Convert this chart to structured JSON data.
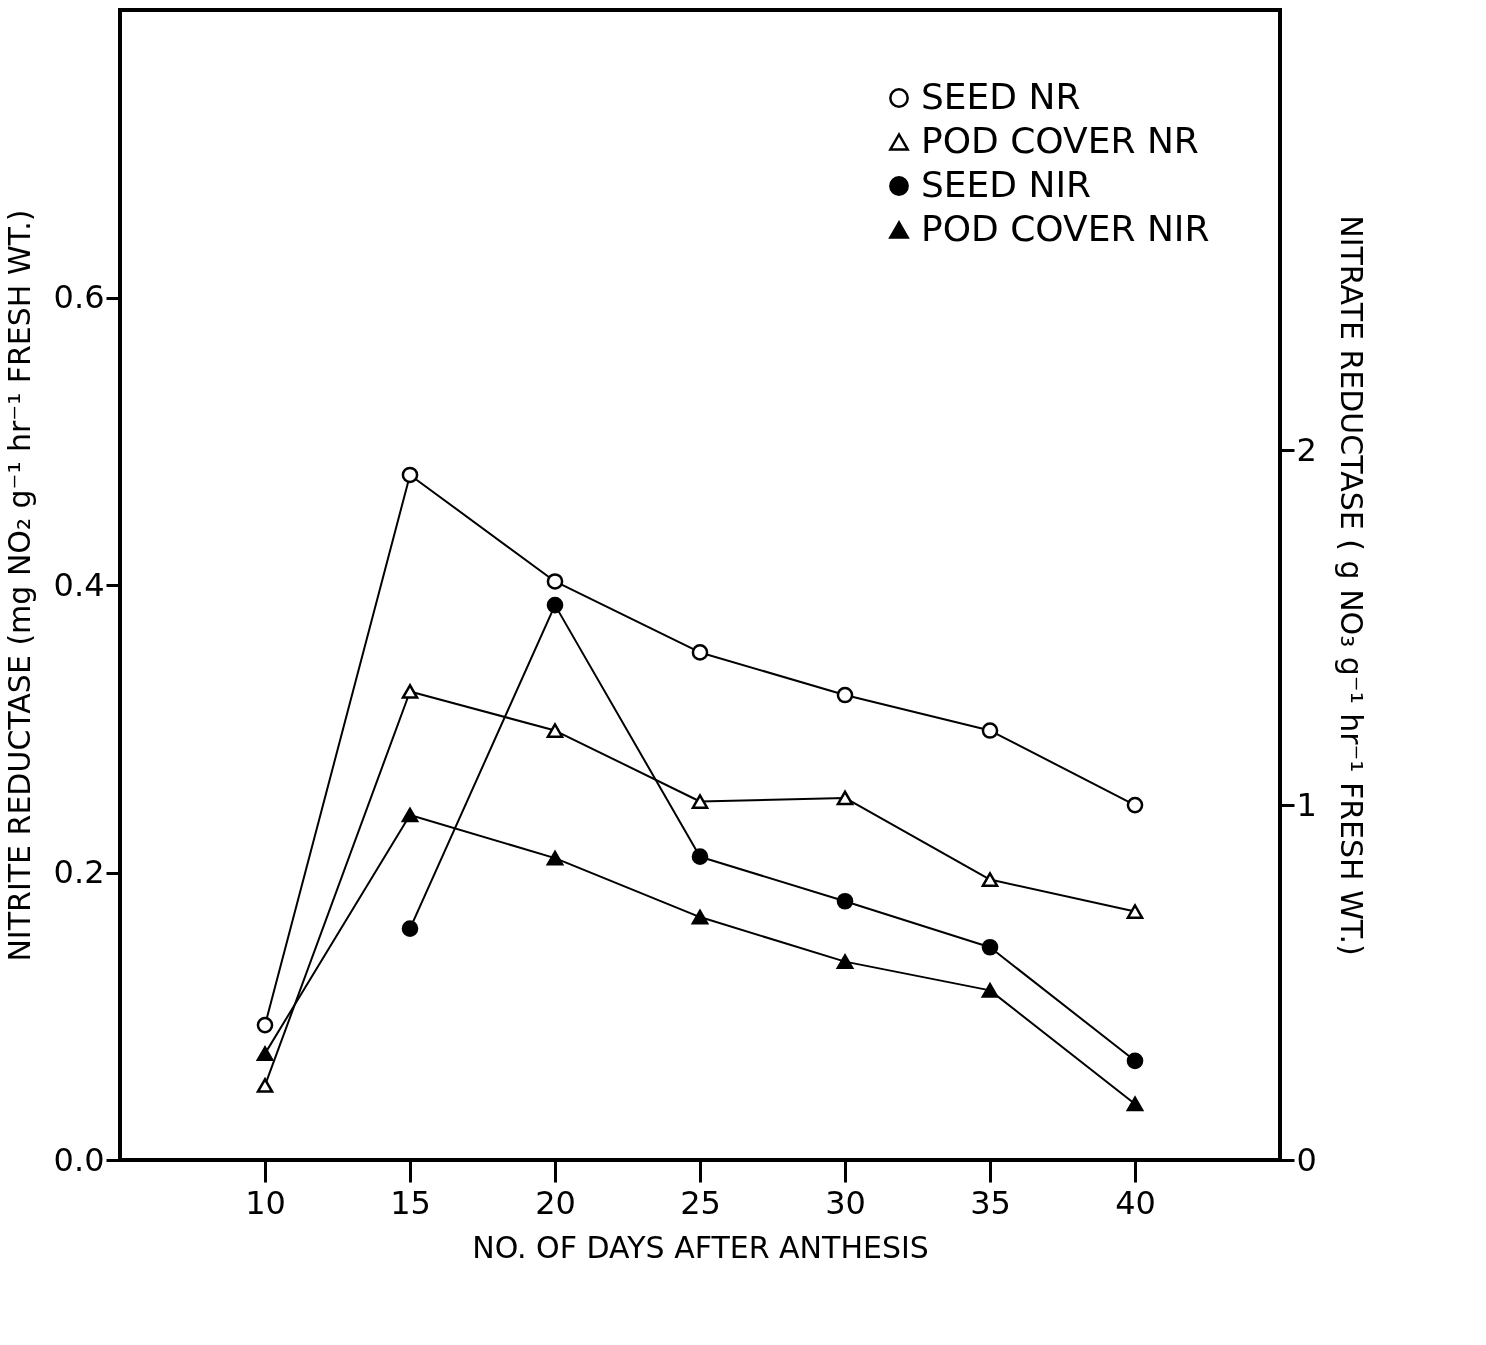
{
  "chart_data": {
    "type": "line",
    "xlabel": "NO. OF DAYS AFTER ANTHESIS",
    "ylabel": "NITRITE REDUCTASE (mg NO₂ g⁻¹ hr⁻¹ FRESH WT.)",
    "y2label": "NITRATE REDUCTASE ( g NO₃ g⁻¹ hr⁻¹ FRESH WT.)",
    "x": [
      10,
      15,
      20,
      25,
      30,
      35,
      40
    ],
    "xlim": [
      5,
      45
    ],
    "xticks": [
      10,
      15,
      20,
      25,
      30,
      35,
      40
    ],
    "ylim": [
      0,
      0.8
    ],
    "yticks": [
      {
        "value": 0,
        "label": "0.0"
      },
      0.2,
      0.4,
      0.6
    ],
    "y2lim": [
      0,
      3.24
    ],
    "y2ticks": [
      0,
      1,
      2
    ],
    "legend": "top right",
    "grid": false,
    "line_style": "solid",
    "series": [
      {
        "name": "SEED NR",
        "color": "#000000",
        "axis": "y2",
        "marker": "circle",
        "values": [
          0.38,
          1.93,
          1.63,
          1.43,
          1.31,
          1.21,
          1.0
        ]
      },
      {
        "name": "POD COVER NR",
        "color": "#000000",
        "axis": "y2",
        "marker": "triangle",
        "values": [
          0.21,
          1.32,
          1.21,
          1.01,
          1.02,
          0.79,
          0.7
        ]
      },
      {
        "name": "SEED NIR",
        "color": "#000000",
        "marker": "circle",
        "values": [
          null,
          0.161,
          0.386,
          0.211,
          0.18,
          0.148,
          0.069
        ]
      },
      {
        "name": "POD COVER NIR",
        "color": "#000000",
        "marker": "triangle",
        "values": [
          0.074,
          0.24,
          0.21,
          0.169,
          0.138,
          0.118,
          0.039
        ]
      }
    ]
  }
}
